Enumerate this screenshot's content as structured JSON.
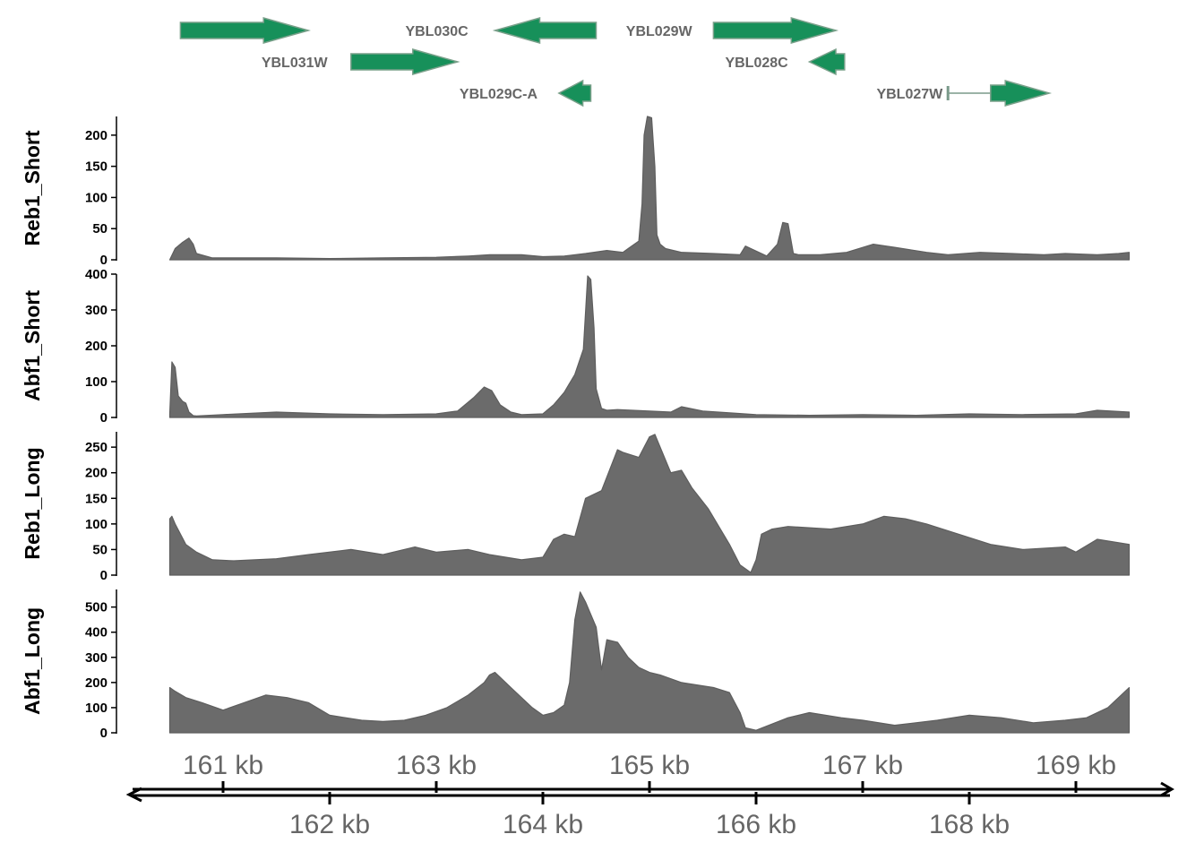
{
  "colors": {
    "gene": "#17905a",
    "gene_stroke": "#7aa08a",
    "signal": "#6b6b6b",
    "axis": "#000000",
    "label": "#666666"
  },
  "chart_data": {
    "type": "area",
    "x_unit": "kb",
    "xlim": [
      160.5,
      169.5
    ],
    "genes": [
      {
        "name": "YBL031W",
        "start": 160.6,
        "end": 161.8,
        "strand": "+",
        "row": 1
      },
      {
        "name": "YBL031W",
        "start": 162.2,
        "end": 163.2,
        "strand": "+",
        "row": 2
      },
      {
        "name": "YBL030C",
        "start": 163.55,
        "end": 164.5,
        "strand": "-",
        "row": 1
      },
      {
        "name": "YBL029C-A",
        "start": 164.15,
        "end": 164.45,
        "strand": "-",
        "row": 3
      },
      {
        "name": "YBL029W",
        "start": 165.6,
        "end": 166.75,
        "strand": "+",
        "row": 1
      },
      {
        "name": "YBL028C",
        "start": 166.5,
        "end": 166.83,
        "strand": "-",
        "row": 2
      },
      {
        "name": "YBL027W",
        "intron_start": 167.8,
        "start": 168.2,
        "end": 168.75,
        "strand": "+",
        "row": 3
      }
    ],
    "gene_labels": [
      {
        "text": "YBL030C",
        "anchor_kb": 163.3,
        "row": 1
      },
      {
        "text": "YBL029W",
        "anchor_kb": 165.4,
        "row": 1
      },
      {
        "text": "YBL031W",
        "anchor_kb": 161.98,
        "row": 2
      },
      {
        "text": "YBL028C",
        "anchor_kb": 166.3,
        "row": 2
      },
      {
        "text": "YBL029C-A",
        "anchor_kb": 163.95,
        "row": 3
      },
      {
        "text": "YBL027W",
        "anchor_kb": 167.75,
        "row": 3
      }
    ],
    "tracks": [
      {
        "name": "Reb1_Short",
        "ylim": [
          0,
          230
        ],
        "yticks": [
          0,
          50,
          100,
          150,
          200
        ],
        "x": [
          160.5,
          160.55,
          160.62,
          160.68,
          160.72,
          160.75,
          160.9,
          161.5,
          162.0,
          162.5,
          163.0,
          163.3,
          163.5,
          163.8,
          164.0,
          164.2,
          164.4,
          164.6,
          164.75,
          164.8,
          164.9,
          164.93,
          164.95,
          164.98,
          165.02,
          165.05,
          165.07,
          165.1,
          165.15,
          165.3,
          165.6,
          165.85,
          165.9,
          166.1,
          166.2,
          166.25,
          166.3,
          166.35,
          166.4,
          166.6,
          166.85,
          167.1,
          167.3,
          167.6,
          167.8,
          168.1,
          168.4,
          168.7,
          168.9,
          169.2,
          169.4,
          169.5
        ],
        "y": [
          0,
          18,
          28,
          35,
          25,
          10,
          3,
          3,
          2,
          3,
          4,
          6,
          8,
          8,
          5,
          6,
          10,
          15,
          12,
          18,
          30,
          90,
          200,
          230,
          228,
          150,
          40,
          25,
          18,
          12,
          10,
          8,
          22,
          6,
          25,
          60,
          58,
          10,
          8,
          8,
          12,
          25,
          20,
          12,
          8,
          12,
          10,
          8,
          10,
          8,
          10,
          12
        ]
      },
      {
        "name": "Abf1_Short",
        "ylim": [
          0,
          400
        ],
        "yticks": [
          0,
          100,
          200,
          300,
          400
        ],
        "x": [
          160.5,
          160.52,
          160.55,
          160.58,
          160.62,
          160.65,
          160.68,
          160.72,
          160.75,
          161.0,
          161.5,
          162.0,
          162.5,
          163.0,
          163.2,
          163.35,
          163.45,
          163.52,
          163.6,
          163.7,
          163.8,
          164.0,
          164.1,
          164.2,
          164.3,
          164.38,
          164.42,
          164.45,
          164.48,
          164.5,
          164.55,
          164.6,
          164.7,
          165.0,
          165.2,
          165.3,
          165.5,
          165.8,
          166.0,
          166.5,
          167.0,
          167.5,
          168.0,
          168.5,
          169.0,
          169.2,
          169.5
        ],
        "y": [
          10,
          155,
          140,
          60,
          45,
          40,
          15,
          5,
          4,
          8,
          15,
          10,
          8,
          10,
          18,
          55,
          85,
          75,
          35,
          15,
          8,
          10,
          35,
          70,
          120,
          190,
          395,
          385,
          250,
          80,
          25,
          20,
          22,
          18,
          15,
          30,
          18,
          12,
          8,
          6,
          8,
          6,
          10,
          8,
          10,
          20,
          15
        ]
      },
      {
        "name": "Reb1_Long",
        "ylim": [
          0,
          280
        ],
        "yticks": [
          0,
          50,
          100,
          150,
          200,
          250
        ],
        "x": [
          160.5,
          160.52,
          160.55,
          160.65,
          160.75,
          160.9,
          161.1,
          161.5,
          161.8,
          162.2,
          162.5,
          162.8,
          163.0,
          163.3,
          163.5,
          163.8,
          164.0,
          164.1,
          164.2,
          164.3,
          164.4,
          164.45,
          164.55,
          164.7,
          164.75,
          164.9,
          165.0,
          165.05,
          165.2,
          165.3,
          165.4,
          165.55,
          165.75,
          165.85,
          165.95,
          166.0,
          166.05,
          166.15,
          166.3,
          166.7,
          167.0,
          167.2,
          167.4,
          167.6,
          167.9,
          168.2,
          168.5,
          168.9,
          169.0,
          169.2,
          169.5
        ],
        "y": [
          110,
          115,
          100,
          60,
          45,
          30,
          28,
          32,
          40,
          50,
          40,
          55,
          45,
          50,
          40,
          30,
          35,
          70,
          80,
          75,
          150,
          155,
          165,
          245,
          240,
          230,
          270,
          275,
          200,
          205,
          170,
          130,
          60,
          20,
          5,
          30,
          80,
          90,
          95,
          90,
          100,
          115,
          110,
          100,
          80,
          60,
          50,
          55,
          45,
          70,
          60
        ]
      },
      {
        "name": "Abf1_Long",
        "ylim": [
          0,
          570
        ],
        "yticks": [
          0,
          100,
          200,
          300,
          400,
          500
        ],
        "x": [
          160.5,
          160.55,
          160.65,
          160.8,
          161.0,
          161.2,
          161.4,
          161.6,
          161.8,
          162.0,
          162.3,
          162.5,
          162.7,
          162.9,
          163.1,
          163.3,
          163.45,
          163.5,
          163.55,
          163.7,
          163.9,
          164.0,
          164.1,
          164.2,
          164.25,
          164.3,
          164.35,
          164.4,
          164.5,
          164.55,
          164.6,
          164.7,
          164.8,
          164.9,
          165.0,
          165.1,
          165.3,
          165.6,
          165.75,
          165.85,
          165.9,
          166.0,
          166.3,
          166.5,
          166.8,
          167.0,
          167.3,
          167.7,
          168.0,
          168.3,
          168.6,
          168.9,
          169.1,
          169.3,
          169.5
        ],
        "y": [
          180,
          165,
          140,
          120,
          90,
          120,
          150,
          140,
          120,
          70,
          50,
          45,
          50,
          70,
          100,
          150,
          200,
          230,
          240,
          180,
          100,
          70,
          80,
          110,
          200,
          450,
          560,
          520,
          420,
          250,
          370,
          360,
          300,
          260,
          240,
          230,
          200,
          180,
          160,
          80,
          20,
          10,
          60,
          80,
          60,
          50,
          30,
          50,
          70,
          60,
          40,
          50,
          60,
          100,
          180
        ]
      }
    ],
    "axis_top_labels": [
      "161 kb",
      "163 kb",
      "165 kb",
      "167 kb",
      "169 kb"
    ],
    "axis_top_ticks_kb": [
      161,
      163,
      165,
      167,
      169
    ],
    "axis_bottom_labels": [
      "162 kb",
      "164 kb",
      "166 kb",
      "168 kb"
    ],
    "axis_bottom_ticks_kb": [
      162,
      164,
      166,
      168
    ]
  }
}
